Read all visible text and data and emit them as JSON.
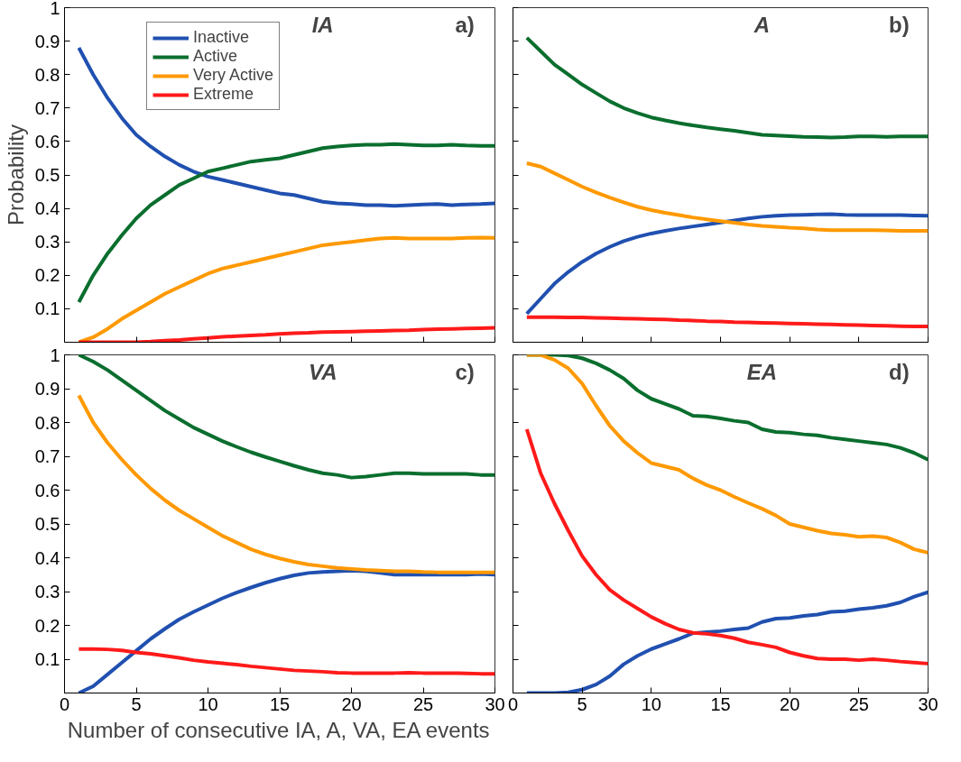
{
  "chart_data": [
    {
      "type": "line",
      "annotations": [
        "IA",
        "a)"
      ],
      "ylabel": "Probability",
      "legend": "top left",
      "tick_labels": "y",
      "xlim": [
        0,
        30
      ],
      "ylim": [
        0,
        1
      ],
      "xticks": [
        0,
        5,
        10,
        15,
        20,
        25,
        30
      ],
      "yticks": [
        0.1,
        0.2,
        0.3,
        0.4,
        0.5,
        0.6,
        0.7,
        0.8,
        0.9,
        1
      ],
      "grid": false,
      "x": [
        1,
        2,
        3,
        4,
        5,
        6,
        7,
        8,
        9,
        10,
        11,
        12,
        13,
        14,
        15,
        16,
        17,
        18,
        19,
        20,
        21,
        22,
        23,
        24,
        25,
        26,
        27,
        28,
        29,
        30
      ],
      "series": [
        {
          "name": "Inactive",
          "color": "#2050b0",
          "values": [
            0.88,
            0.8,
            0.73,
            0.67,
            0.62,
            0.585,
            0.555,
            0.53,
            0.51,
            0.495,
            0.485,
            0.475,
            0.465,
            0.455,
            0.445,
            0.44,
            0.43,
            0.42,
            0.415,
            0.413,
            0.41,
            0.41,
            0.408,
            0.41,
            0.412,
            0.413,
            0.41,
            0.412,
            0.413,
            0.415
          ]
        },
        {
          "name": "Active",
          "color": "#0a6e2e",
          "values": [
            0.12,
            0.2,
            0.265,
            0.32,
            0.37,
            0.41,
            0.44,
            0.47,
            0.49,
            0.51,
            0.52,
            0.53,
            0.54,
            0.545,
            0.55,
            0.56,
            0.57,
            0.58,
            0.585,
            0.588,
            0.59,
            0.59,
            0.592,
            0.59,
            0.588,
            0.588,
            0.59,
            0.588,
            0.587,
            0.587
          ]
        },
        {
          "name": "Very Active",
          "color": "#ff9900",
          "values": [
            0.0,
            0.015,
            0.04,
            0.07,
            0.095,
            0.12,
            0.145,
            0.165,
            0.185,
            0.205,
            0.22,
            0.23,
            0.24,
            0.25,
            0.26,
            0.27,
            0.28,
            0.29,
            0.295,
            0.3,
            0.305,
            0.31,
            0.312,
            0.31,
            0.31,
            0.31,
            0.31,
            0.312,
            0.313,
            0.312
          ]
        },
        {
          "name": "Extreme",
          "color": "#ff1a1a",
          "values": [
            0,
            0,
            0,
            0,
            0,
            0.002,
            0.005,
            0.007,
            0.01,
            0.013,
            0.016,
            0.018,
            0.02,
            0.022,
            0.025,
            0.027,
            0.028,
            0.03,
            0.031,
            0.032,
            0.033,
            0.034,
            0.035,
            0.036,
            0.038,
            0.039,
            0.04,
            0.041,
            0.042,
            0.043
          ]
        }
      ]
    },
    {
      "type": "line",
      "annotations": [
        "A",
        "b)"
      ],
      "tick_labels": false,
      "xlim": [
        0,
        30
      ],
      "ylim": [
        0,
        1
      ],
      "xticks": [
        0,
        5,
        10,
        15,
        20,
        25,
        30
      ],
      "yticks": [
        0.1,
        0.2,
        0.3,
        0.4,
        0.5,
        0.6,
        0.7,
        0.8,
        0.9,
        1
      ],
      "grid": false,
      "x": [
        1,
        2,
        3,
        4,
        5,
        6,
        7,
        8,
        9,
        10,
        11,
        12,
        13,
        14,
        15,
        16,
        17,
        18,
        19,
        20,
        21,
        22,
        23,
        24,
        25,
        26,
        27,
        28,
        29,
        30
      ],
      "series": [
        {
          "color": "#2050b0",
          "values": [
            0.085,
            0.13,
            0.175,
            0.21,
            0.24,
            0.265,
            0.285,
            0.302,
            0.315,
            0.325,
            0.333,
            0.34,
            0.346,
            0.352,
            0.358,
            0.364,
            0.37,
            0.375,
            0.378,
            0.38,
            0.381,
            0.382,
            0.383,
            0.381,
            0.38,
            0.38,
            0.38,
            0.38,
            0.379,
            0.378
          ]
        },
        {
          "color": "#0a6e2e",
          "values": [
            0.91,
            0.87,
            0.83,
            0.8,
            0.77,
            0.745,
            0.72,
            0.7,
            0.685,
            0.672,
            0.663,
            0.655,
            0.648,
            0.642,
            0.637,
            0.632,
            0.626,
            0.62,
            0.618,
            0.616,
            0.614,
            0.613,
            0.612,
            0.613,
            0.615,
            0.615,
            0.614,
            0.615,
            0.615,
            0.615
          ]
        },
        {
          "color": "#ff9900",
          "values": [
            0.535,
            0.525,
            0.505,
            0.485,
            0.465,
            0.448,
            0.432,
            0.418,
            0.405,
            0.395,
            0.387,
            0.38,
            0.373,
            0.367,
            0.362,
            0.357,
            0.352,
            0.348,
            0.345,
            0.342,
            0.34,
            0.337,
            0.335,
            0.335,
            0.335,
            0.335,
            0.334,
            0.333,
            0.333,
            0.333
          ]
        },
        {
          "color": "#ff1a1a",
          "values": [
            0.075,
            0.075,
            0.075,
            0.074,
            0.074,
            0.073,
            0.072,
            0.071,
            0.07,
            0.069,
            0.068,
            0.066,
            0.065,
            0.063,
            0.062,
            0.06,
            0.059,
            0.058,
            0.057,
            0.056,
            0.055,
            0.054,
            0.053,
            0.052,
            0.051,
            0.05,
            0.049,
            0.048,
            0.047,
            0.047
          ]
        }
      ]
    },
    {
      "type": "line",
      "annotations": [
        "VA",
        "c)"
      ],
      "xlabel": "Number of consecutive IA, A, VA, EA events",
      "xlim": [
        0,
        30
      ],
      "ylim": [
        0,
        1
      ],
      "xticks": [
        0,
        5,
        10,
        15,
        20,
        25,
        30
      ],
      "yticks": [
        0.1,
        0.2,
        0.3,
        0.4,
        0.5,
        0.6,
        0.7,
        0.8,
        0.9,
        1
      ],
      "grid": false,
      "x": [
        1,
        2,
        3,
        4,
        5,
        6,
        7,
        8,
        9,
        10,
        11,
        12,
        13,
        14,
        15,
        16,
        17,
        18,
        19,
        20,
        21,
        22,
        23,
        24,
        25,
        26,
        27,
        28,
        29,
        30
      ],
      "series": [
        {
          "color": "#2050b0",
          "values": [
            0.0,
            0.02,
            0.055,
            0.09,
            0.125,
            0.16,
            0.19,
            0.218,
            0.24,
            0.26,
            0.28,
            0.297,
            0.312,
            0.326,
            0.338,
            0.348,
            0.355,
            0.358,
            0.36,
            0.362,
            0.36,
            0.355,
            0.35,
            0.35,
            0.35,
            0.35,
            0.35,
            0.35,
            0.352,
            0.35
          ]
        },
        {
          "color": "#0a6e2e",
          "values": [
            1.0,
            0.98,
            0.955,
            0.925,
            0.895,
            0.865,
            0.835,
            0.81,
            0.785,
            0.765,
            0.745,
            0.728,
            0.712,
            0.698,
            0.685,
            0.672,
            0.66,
            0.65,
            0.645,
            0.637,
            0.64,
            0.645,
            0.65,
            0.65,
            0.648,
            0.648,
            0.648,
            0.648,
            0.645,
            0.645
          ]
        },
        {
          "color": "#ff9900",
          "values": [
            0.88,
            0.8,
            0.74,
            0.69,
            0.645,
            0.605,
            0.57,
            0.54,
            0.515,
            0.49,
            0.465,
            0.445,
            0.425,
            0.41,
            0.398,
            0.388,
            0.38,
            0.375,
            0.37,
            0.367,
            0.364,
            0.362,
            0.36,
            0.36,
            0.358,
            0.357,
            0.357,
            0.357,
            0.357,
            0.357
          ]
        },
        {
          "color": "#ff1a1a",
          "values": [
            0.13,
            0.13,
            0.129,
            0.126,
            0.12,
            0.116,
            0.11,
            0.104,
            0.097,
            0.092,
            0.088,
            0.084,
            0.079,
            0.075,
            0.071,
            0.067,
            0.065,
            0.063,
            0.06,
            0.059,
            0.059,
            0.059,
            0.059,
            0.06,
            0.059,
            0.059,
            0.059,
            0.058,
            0.057,
            0.057
          ]
        }
      ]
    },
    {
      "type": "line",
      "annotations": [
        "EA",
        "d)"
      ],
      "tick_labels": "x",
      "xlim": [
        0,
        30
      ],
      "ylim": [
        0,
        1
      ],
      "xticks": [
        0,
        5,
        10,
        15,
        20,
        25,
        30
      ],
      "yticks": [
        0.1,
        0.2,
        0.3,
        0.4,
        0.5,
        0.6,
        0.7,
        0.8,
        0.9,
        1
      ],
      "grid": false,
      "x": [
        1,
        2,
        3,
        4,
        5,
        6,
        7,
        8,
        9,
        10,
        11,
        12,
        13,
        14,
        15,
        16,
        17,
        18,
        19,
        20,
        21,
        22,
        23,
        24,
        25,
        26,
        27,
        28,
        29,
        30
      ],
      "series": [
        {
          "color": "#2050b0",
          "values": [
            0.0,
            0.0,
            0.0,
            0.002,
            0.01,
            0.025,
            0.05,
            0.085,
            0.11,
            0.13,
            0.145,
            0.16,
            0.177,
            0.18,
            0.183,
            0.188,
            0.192,
            0.21,
            0.22,
            0.222,
            0.228,
            0.232,
            0.24,
            0.242,
            0.248,
            0.252,
            0.258,
            0.268,
            0.285,
            0.298
          ]
        },
        {
          "color": "#0a6e2e",
          "values": [
            1.0,
            1.0,
            1.0,
            0.998,
            0.99,
            0.975,
            0.955,
            0.93,
            0.895,
            0.87,
            0.855,
            0.84,
            0.82,
            0.818,
            0.812,
            0.805,
            0.8,
            0.78,
            0.772,
            0.77,
            0.765,
            0.762,
            0.755,
            0.75,
            0.745,
            0.74,
            0.735,
            0.725,
            0.71,
            0.69
          ]
        },
        {
          "color": "#ff9900",
          "values": [
            1.0,
            1.0,
            0.985,
            0.96,
            0.915,
            0.85,
            0.79,
            0.745,
            0.71,
            0.68,
            0.67,
            0.66,
            0.635,
            0.615,
            0.6,
            0.58,
            0.562,
            0.545,
            0.525,
            0.5,
            0.49,
            0.48,
            0.472,
            0.468,
            0.462,
            0.464,
            0.46,
            0.445,
            0.425,
            0.415
          ]
        },
        {
          "color": "#ff1a1a",
          "values": [
            0.78,
            0.65,
            0.56,
            0.48,
            0.405,
            0.35,
            0.305,
            0.275,
            0.25,
            0.225,
            0.205,
            0.188,
            0.178,
            0.175,
            0.17,
            0.162,
            0.15,
            0.143,
            0.135,
            0.12,
            0.11,
            0.102,
            0.1,
            0.1,
            0.097,
            0.1,
            0.097,
            0.093,
            0.09,
            0.087
          ]
        }
      ]
    }
  ]
}
